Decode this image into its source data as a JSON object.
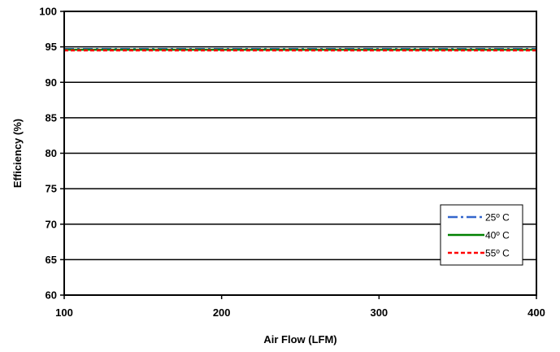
{
  "chart_data": {
    "type": "line",
    "title": "",
    "xlabel": "Air Flow (LFM)",
    "ylabel": "Efficiency (%)",
    "xlim": [
      100,
      400
    ],
    "ylim": [
      60,
      100
    ],
    "x_ticks": [
      100,
      200,
      300,
      400
    ],
    "y_ticks": [
      60,
      65,
      70,
      75,
      80,
      85,
      90,
      95,
      100
    ],
    "grid": "horizontal",
    "legend_position": "bottom-right",
    "series": [
      {
        "name": "25º C",
        "x": [
          100,
          200,
          300,
          400
        ],
        "y": [
          94.7,
          94.7,
          94.7,
          94.7
        ],
        "color": "#3366cc",
        "style": "dash-dot"
      },
      {
        "name": "40º C",
        "x": [
          100,
          200,
          300,
          400
        ],
        "y": [
          94.6,
          94.6,
          94.6,
          94.6
        ],
        "color": "#008000",
        "style": "solid"
      },
      {
        "name": "55º C",
        "x": [
          100,
          200,
          300,
          400
        ],
        "y": [
          94.5,
          94.5,
          94.5,
          94.5
        ],
        "color": "#ff0000",
        "style": "dashed"
      }
    ]
  }
}
